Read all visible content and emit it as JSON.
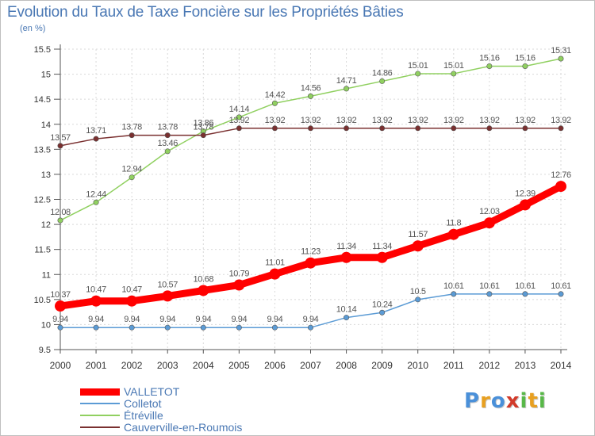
{
  "title": "Evolution du Taux de Taxe Foncière sur les Propriétés Bâties",
  "unit_label": "(en %)",
  "logo": {
    "text": "Proxiti",
    "letters": [
      "P",
      "r",
      "o",
      "x",
      "i",
      "t",
      "i"
    ],
    "colors": [
      "#4a90d9",
      "#e8a020",
      "#4a90d9",
      "#d23a2a",
      "#58b848",
      "#e8a020",
      "#58b848"
    ]
  },
  "chart_data": {
    "type": "line",
    "x": [
      2000,
      2001,
      2002,
      2003,
      2004,
      2005,
      2006,
      2007,
      2008,
      2009,
      2010,
      2011,
      2012,
      2013,
      2014
    ],
    "ylim": [
      9.5,
      15.5
    ],
    "yticks": [
      9.5,
      10,
      10.5,
      11,
      11.5,
      12,
      12.5,
      13,
      13.5,
      14,
      14.5,
      15,
      15.5
    ],
    "grid": true,
    "legend_position": "bottom-left",
    "series": [
      {
        "name": "VALLETOT",
        "color": "#ff0000",
        "emphasis": true,
        "values": [
          10.37,
          10.47,
          10.47,
          10.57,
          10.68,
          10.79,
          11.01,
          11.23,
          11.34,
          11.34,
          11.57,
          11.8,
          12.03,
          12.39,
          12.76
        ]
      },
      {
        "name": "Colletot",
        "color": "#5b9bd5",
        "values": [
          9.94,
          9.94,
          9.94,
          9.94,
          9.94,
          9.94,
          9.94,
          9.94,
          10.14,
          10.24,
          10.5,
          10.61,
          10.61,
          10.61,
          10.61
        ]
      },
      {
        "name": "Étréville",
        "color": "#90d060",
        "values": [
          12.08,
          12.44,
          12.94,
          13.46,
          13.86,
          14.14,
          14.42,
          14.56,
          14.71,
          14.86,
          15.01,
          15.01,
          15.16,
          15.16,
          15.31
        ]
      },
      {
        "name": "Cauverville-en-Roumois",
        "color": "#7a3030",
        "values": [
          13.57,
          13.71,
          13.78,
          13.78,
          13.78,
          13.92,
          13.92,
          13.92,
          13.92,
          13.92,
          13.92,
          13.92,
          13.92,
          13.92,
          13.92
        ]
      }
    ]
  }
}
